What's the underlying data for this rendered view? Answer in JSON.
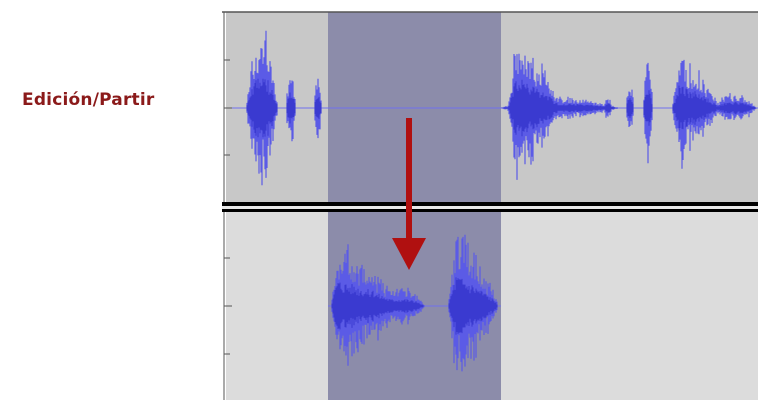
{
  "label": {
    "text": "Edición/Partir",
    "color": "#8b1a1a"
  },
  "tracks": [
    {
      "name": "top-track",
      "background": "#c8c8c8",
      "selection_color": "#8c8caa"
    },
    {
      "name": "bottom-track",
      "background": "#dcdcdc",
      "selection_color": "#8c8caa"
    }
  ],
  "colors": {
    "waveform": "#5b5be6",
    "waveform_dark": "#3a3ad0",
    "centerline": "#7070ee",
    "separator": "#000000",
    "arrow": "#b01010",
    "ruler": "#555555"
  },
  "icons": {
    "arrow": "split-down-arrow-icon"
  }
}
